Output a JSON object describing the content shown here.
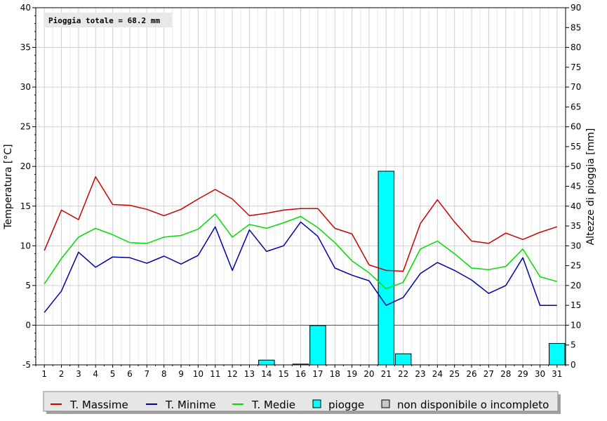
{
  "chart_data": {
    "type": "line",
    "annotation": "Pioggia totale = 68.2 mm",
    "ylabel_left": "Temperatura [°C]",
    "ylabel_right": "Altezze di pioggia [mm]",
    "ylim_left": [
      -5,
      40
    ],
    "ylim_right": [
      0,
      90
    ],
    "yticks_left": [
      "-5",
      "0",
      "5",
      "10",
      "15",
      "20",
      "25",
      "30",
      "35",
      "40"
    ],
    "yticks_right": [
      "0",
      "5",
      "10",
      "15",
      "20",
      "25",
      "30",
      "35",
      "40",
      "45",
      "50",
      "55",
      "60",
      "65",
      "70",
      "75",
      "80",
      "85",
      "90"
    ],
    "x": [
      "1",
      "2",
      "3",
      "4",
      "5",
      "6",
      "7",
      "8",
      "9",
      "10",
      "11",
      "12",
      "13",
      "14",
      "15",
      "16",
      "17",
      "18",
      "19",
      "20",
      "21",
      "22",
      "23",
      "24",
      "25",
      "26",
      "27",
      "28",
      "29",
      "30",
      "31"
    ],
    "grid": true,
    "legend_position": "bottom",
    "series": [
      {
        "name": "T. Massime",
        "color": "#cc0000",
        "values": [
          9.4,
          14.5,
          13.3,
          18.7,
          15.2,
          15.1,
          14.6,
          13.8,
          14.6,
          15.9,
          17.1,
          15.9,
          13.8,
          14.1,
          14.5,
          14.7,
          14.7,
          12.2,
          11.5,
          7.6,
          6.9,
          6.8,
          12.8,
          15.8,
          13.0,
          10.6,
          10.3,
          11.6,
          10.8,
          11.7,
          12.4
        ]
      },
      {
        "name": "T. Minime",
        "color": "#0000aa",
        "values": [
          1.6,
          4.3,
          9.2,
          7.3,
          8.6,
          8.5,
          7.8,
          8.7,
          7.7,
          8.8,
          12.4,
          6.9,
          12.0,
          9.3,
          10.0,
          13.0,
          11.2,
          7.2,
          6.3,
          5.6,
          2.5,
          3.5,
          6.5,
          7.9,
          6.9,
          5.7,
          4.0,
          5.0,
          8.5,
          2.5,
          2.5
        ]
      },
      {
        "name": "T. Medie",
        "color": "#00dd00",
        "values": [
          5.2,
          8.4,
          11.1,
          12.2,
          11.4,
          10.4,
          10.3,
          11.1,
          11.3,
          12.1,
          14.0,
          11.1,
          12.7,
          12.2,
          12.9,
          13.7,
          12.3,
          10.4,
          8.1,
          6.6,
          4.6,
          5.4,
          9.6,
          10.6,
          9.0,
          7.2,
          7.0,
          7.4,
          9.6,
          6.1,
          5.5
        ]
      }
    ],
    "rain": {
      "name": "piogge",
      "color": "#00ffff",
      "values": [
        0,
        0,
        0,
        0,
        0,
        0,
        0,
        0,
        0,
        0,
        0,
        0,
        0,
        1.2,
        0,
        0.2,
        9.9,
        0,
        0,
        0,
        48.8,
        2.8,
        0,
        0,
        0,
        0,
        0,
        0,
        0,
        0,
        5.4
      ]
    },
    "legend": [
      {
        "label": "T. Massime",
        "kind": "line",
        "color": "#cc0000"
      },
      {
        "label": "T. Minime",
        "kind": "line",
        "color": "#0000aa"
      },
      {
        "label": "T. Medie",
        "kind": "line",
        "color": "#00dd00"
      },
      {
        "label": "piogge",
        "kind": "box",
        "color": "#00ffff"
      },
      {
        "label": "non disponibile o incompleto",
        "kind": "box",
        "color": "#c8c8c8"
      }
    ]
  }
}
